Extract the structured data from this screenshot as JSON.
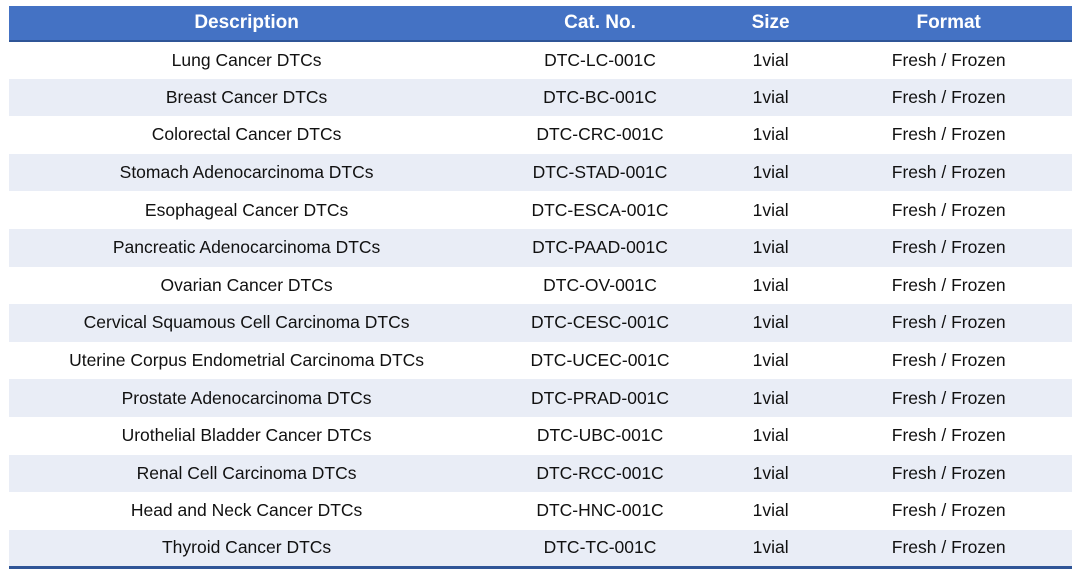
{
  "colors": {
    "header_bg": "#4472C4",
    "header_text": "#FFFFFF",
    "band_row_bg": "#E9EDF6",
    "border_blue": "#2F5597",
    "body_text": "#111111"
  },
  "table": {
    "columns": [
      {
        "key": "description",
        "label": "Description"
      },
      {
        "key": "cat_no",
        "label": "Cat. No."
      },
      {
        "key": "size",
        "label": "Size"
      },
      {
        "key": "format",
        "label": "Format"
      }
    ],
    "rows": [
      {
        "description": "Lung Cancer DTCs",
        "cat_no": "DTC-LC-001C",
        "size": "1vial",
        "format": "Fresh / Frozen"
      },
      {
        "description": "Breast Cancer DTCs",
        "cat_no": "DTC-BC-001C",
        "size": "1vial",
        "format": "Fresh / Frozen"
      },
      {
        "description": "Colorectal Cancer DTCs",
        "cat_no": "DTC-CRC-001C",
        "size": "1vial",
        "format": "Fresh / Frozen"
      },
      {
        "description": "Stomach Adenocarcinoma DTCs",
        "cat_no": "DTC-STAD-001C",
        "size": "1vial",
        "format": "Fresh / Frozen"
      },
      {
        "description": "Esophageal Cancer DTCs",
        "cat_no": "DTC-ESCA-001C",
        "size": "1vial",
        "format": "Fresh / Frozen"
      },
      {
        "description": "Pancreatic Adenocarcinoma DTCs",
        "cat_no": "DTC-PAAD-001C",
        "size": "1vial",
        "format": "Fresh / Frozen"
      },
      {
        "description": "Ovarian Cancer DTCs",
        "cat_no": "DTC-OV-001C",
        "size": "1vial",
        "format": "Fresh / Frozen"
      },
      {
        "description": "Cervical Squamous Cell Carcinoma DTCs",
        "cat_no": "DTC-CESC-001C",
        "size": "1vial",
        "format": "Fresh / Frozen"
      },
      {
        "description": "Uterine Corpus Endometrial Carcinoma DTCs",
        "cat_no": "DTC-UCEC-001C",
        "size": "1vial",
        "format": "Fresh / Frozen"
      },
      {
        "description": "Prostate Adenocarcinoma DTCs",
        "cat_no": "DTC-PRAD-001C",
        "size": "1vial",
        "format": "Fresh / Frozen"
      },
      {
        "description": "Urothelial Bladder Cancer DTCs",
        "cat_no": "DTC-UBC-001C",
        "size": "1vial",
        "format": "Fresh / Frozen"
      },
      {
        "description": "Renal Cell Carcinoma DTCs",
        "cat_no": "DTC-RCC-001C",
        "size": "1vial",
        "format": "Fresh / Frozen"
      },
      {
        "description": "Head and Neck Cancer DTCs",
        "cat_no": "DTC-HNC-001C",
        "size": "1vial",
        "format": "Fresh / Frozen"
      },
      {
        "description": "Thyroid Cancer DTCs",
        "cat_no": "DTC-TC-001C",
        "size": "1vial",
        "format": "Fresh / Frozen"
      }
    ]
  }
}
